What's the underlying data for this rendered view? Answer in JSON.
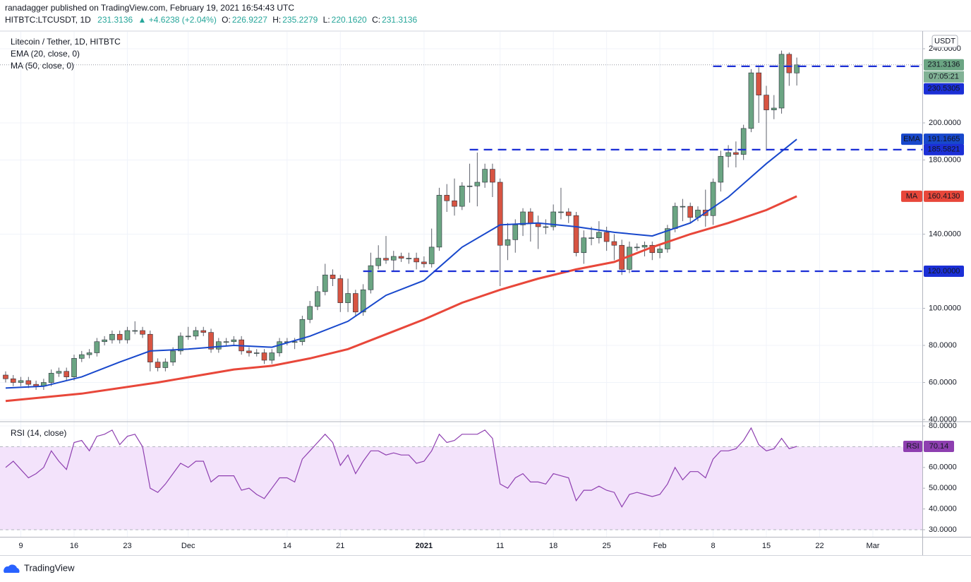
{
  "header": {
    "author_line": "ranadagger published on TradingView.com, February 19, 2021 16:54:43 UTC",
    "symbol": "HITBTC:LTCUSDT, 1D",
    "price": "231.3136",
    "change": "▲ +4.6238 (+2.04%)",
    "ohlc": [
      {
        "label": "O:",
        "value": "226.9227"
      },
      {
        "label": "H:",
        "value": "235.2279"
      },
      {
        "label": "L:",
        "value": "220.1620"
      },
      {
        "label": "C:",
        "value": "231.3136"
      }
    ]
  },
  "footer": {
    "brand": "TradingView"
  },
  "chart_data": [
    {
      "type": "candlestick",
      "title": "Litecoin / Tether, 1D, HITBTC",
      "currency": "USDT",
      "countdown": "07:05:21",
      "up_color": "#6ba583",
      "down_color": "#d75442",
      "wick_color": "#5d606b",
      "x": [
        0,
        1,
        2,
        3,
        4,
        5,
        6,
        7,
        8,
        9,
        10,
        11,
        12,
        13,
        14,
        15,
        16,
        17,
        18,
        19,
        20,
        21,
        22,
        23,
        24,
        25,
        26,
        27,
        28,
        29,
        30,
        31,
        32,
        33,
        34,
        35,
        36,
        37,
        38,
        39,
        40,
        41,
        42,
        43,
        44,
        45,
        46,
        47,
        48,
        49,
        50,
        51,
        52,
        53,
        54,
        55,
        56,
        57,
        58,
        59,
        60,
        61,
        62,
        63,
        64,
        65,
        66,
        67,
        68,
        69,
        70,
        71,
        72,
        73,
        74,
        75,
        76,
        77,
        78,
        79,
        80,
        81,
        82,
        83,
        84,
        85,
        86,
        87,
        88,
        89,
        90,
        91,
        92,
        93,
        94,
        95,
        96,
        97,
        98,
        99,
        100,
        101,
        102,
        103,
        104
      ],
      "open": [
        64,
        62,
        60,
        61,
        59,
        58,
        60,
        65,
        66,
        63,
        73,
        75,
        76,
        82,
        83,
        86,
        83,
        88,
        88,
        86,
        71,
        68,
        71,
        77,
        85,
        85,
        88,
        87,
        78,
        82,
        82,
        83,
        77,
        76,
        76,
        72,
        76,
        82,
        82,
        82,
        94,
        101,
        109,
        118,
        116,
        103,
        108,
        98,
        110,
        123,
        127,
        126,
        128,
        127,
        127,
        125,
        124,
        133,
        161,
        158,
        155,
        166,
        166,
        168,
        175,
        168,
        134,
        137,
        145,
        152,
        146,
        144,
        144,
        152,
        152,
        150,
        130,
        138,
        138,
        141,
        136,
        134,
        121,
        133,
        133,
        134,
        130,
        132,
        143,
        155,
        155,
        149,
        153,
        150,
        168,
        182,
        184,
        183,
        197,
        227,
        215,
        207,
        208,
        237,
        226.9227
      ],
      "high": [
        66,
        64,
        63,
        63,
        61,
        62,
        67,
        68,
        68,
        75,
        77,
        78,
        84,
        85,
        88,
        88,
        90,
        93,
        90,
        88,
        73,
        73,
        79,
        87,
        90,
        90,
        90,
        89,
        84,
        84,
        85,
        85,
        79,
        78,
        78,
        78,
        84,
        84,
        84,
        96,
        104,
        112,
        124,
        121,
        118,
        116,
        110,
        113,
        130,
        134,
        139,
        131,
        130,
        130,
        130,
        128,
        143,
        165,
        167,
        170,
        168,
        178,
        184,
        178,
        178,
        170,
        146,
        148,
        154,
        154,
        150,
        148,
        156,
        165,
        154,
        152,
        142,
        144,
        147,
        144,
        140,
        137,
        136,
        135,
        136,
        136,
        134,
        145,
        157,
        159,
        157,
        155,
        164,
        170,
        185,
        188,
        190,
        199,
        229,
        230,
        220,
        215,
        239,
        238,
        235.2279
      ],
      "low": [
        60,
        58,
        58,
        57,
        56,
        56,
        58,
        63,
        61,
        61,
        71,
        73,
        74,
        80,
        81,
        81,
        81,
        86,
        84,
        66,
        66,
        66,
        69,
        75,
        83,
        83,
        85,
        76,
        76,
        80,
        80,
        75,
        74,
        74,
        70,
        70,
        74,
        80,
        78,
        80,
        92,
        99,
        107,
        112,
        98,
        98,
        96,
        96,
        108,
        121,
        124,
        120,
        125,
        124,
        121,
        122,
        122,
        131,
        152,
        150,
        153,
        157,
        155,
        165,
        160,
        112,
        126,
        130,
        139,
        136,
        132,
        140,
        142,
        148,
        146,
        128,
        124,
        134,
        135,
        131,
        126,
        118,
        119,
        131,
        128,
        126,
        127,
        130,
        141,
        147,
        146,
        147,
        144,
        145,
        163,
        176,
        176,
        180,
        195,
        200,
        185,
        202,
        205,
        220,
        220.162
      ],
      "close": [
        62,
        60,
        61,
        59,
        58,
        60,
        65,
        66,
        63,
        73,
        75,
        76,
        82,
        83,
        86,
        83,
        88,
        88,
        86,
        71,
        68,
        71,
        77,
        85,
        85,
        88,
        87,
        78,
        82,
        82,
        83,
        77,
        76,
        76,
        72,
        76,
        82,
        82,
        82,
        94,
        101,
        109,
        118,
        116,
        103,
        108,
        98,
        110,
        123,
        127,
        126,
        128,
        127,
        127,
        125,
        124,
        133,
        161,
        158,
        155,
        166,
        166,
        168,
        175,
        168,
        134,
        137,
        145,
        152,
        146,
        144,
        144,
        152,
        152,
        150,
        130,
        138,
        138,
        141,
        136,
        134,
        121,
        133,
        133,
        134,
        130,
        132,
        143,
        155,
        155,
        149,
        153,
        150,
        168,
        182,
        184,
        183,
        197,
        227,
        215,
        207,
        208,
        237,
        227,
        231.3136
      ],
      "series": [
        {
          "name": "EMA (20, close, 0)",
          "tag": "EMA",
          "color": "#1848cc",
          "x": [
            0,
            5,
            10,
            15,
            19,
            24,
            30,
            35,
            40,
            45,
            50,
            55,
            60,
            65,
            70,
            75,
            80,
            85,
            90,
            95,
            100,
            104
          ],
          "values": [
            57,
            58,
            63,
            71,
            77,
            78,
            80,
            79,
            85,
            93,
            107,
            115,
            133,
            145,
            146,
            144,
            141,
            139,
            146,
            160,
            178,
            191.1665
          ]
        },
        {
          "name": "MA (50, close, 0)",
          "tag": "MA",
          "color": "#e8473a",
          "x": [
            0,
            10,
            20,
            30,
            35,
            40,
            45,
            50,
            55,
            60,
            65,
            70,
            75,
            80,
            85,
            90,
            95,
            100,
            104
          ],
          "values": [
            50,
            54,
            60,
            67,
            69,
            73,
            78,
            86,
            94,
            103,
            110,
            116,
            121,
            125,
            133,
            140,
            146,
            153,
            160.413
          ],
          "value_labels": [
            null,
            null,
            null,
            null,
            null,
            null,
            null,
            null,
            null,
            null,
            null,
            null,
            null,
            null,
            null,
            null,
            null,
            null,
            "160.4130"
          ]
        }
      ],
      "levels": [
        {
          "value": 230.5305,
          "start": 93
        },
        {
          "value": 185.5821,
          "start": 61
        },
        {
          "value": 120,
          "label": "120.0000",
          "start": 47
        }
      ],
      "level_color": "#1b2fd6",
      "xlim": [
        -0.74,
        120.5
      ],
      "xticks": [
        {
          "value": 2,
          "label": "9"
        },
        {
          "value": 9,
          "label": "16"
        },
        {
          "value": 16,
          "label": "23"
        },
        {
          "value": 24,
          "label": "Dec"
        },
        {
          "value": 37,
          "label": "14"
        },
        {
          "value": 44,
          "label": "21"
        },
        {
          "value": 55,
          "label": "2021"
        },
        {
          "value": 65,
          "label": "11"
        },
        {
          "value": 72,
          "label": "18"
        },
        {
          "value": 79,
          "label": "25"
        },
        {
          "value": 86,
          "label": "Feb"
        },
        {
          "value": 93,
          "label": "8"
        },
        {
          "value": 100,
          "label": "15"
        },
        {
          "value": 107,
          "label": "22"
        },
        {
          "value": 114,
          "label": "Mar"
        }
      ],
      "ylim": [
        39.24,
        249.14
      ],
      "yticks": [
        {
          "value": 40,
          "label": "40.0000"
        },
        {
          "value": 60,
          "label": "60.0000"
        },
        {
          "value": 80,
          "label": "80.0000"
        },
        {
          "value": 100,
          "label": "100.0000"
        },
        {
          "value": 140,
          "label": "140.0000"
        },
        {
          "value": 180,
          "label": "180.0000"
        },
        {
          "value": 200,
          "label": "200.0000"
        },
        {
          "value": 240,
          "label": "240.0000"
        }
      ],
      "grid": true
    },
    {
      "type": "line",
      "title": "RSI (14, close)",
      "band": [
        30,
        70
      ],
      "band_color": "#f3e3fb",
      "x": [
        0,
        1,
        2,
        3,
        4,
        5,
        6,
        7,
        8,
        9,
        10,
        11,
        12,
        13,
        14,
        15,
        16,
        17,
        18,
        19,
        20,
        21,
        22,
        23,
        24,
        25,
        26,
        27,
        28,
        29,
        30,
        31,
        32,
        33,
        34,
        35,
        36,
        37,
        38,
        39,
        40,
        41,
        42,
        43,
        44,
        45,
        46,
        47,
        48,
        49,
        50,
        51,
        52,
        53,
        54,
        55,
        56,
        57,
        58,
        59,
        60,
        61,
        62,
        63,
        64,
        65,
        66,
        67,
        68,
        69,
        70,
        71,
        72,
        73,
        74,
        75,
        76,
        77,
        78,
        79,
        80,
        81,
        82,
        83,
        84,
        85,
        86,
        87,
        88,
        89,
        90,
        91,
        92,
        93,
        94,
        95,
        96,
        97,
        98,
        99,
        100,
        101,
        102,
        103,
        104
      ],
      "series": [
        {
          "name": "RSI",
          "color": "#8e3fb0",
          "values": [
            60,
            63,
            59,
            55,
            57,
            60,
            68,
            63,
            59,
            72,
            73,
            68,
            75,
            76,
            78,
            71,
            75,
            76,
            70,
            50,
            48,
            52,
            57,
            62,
            60,
            63,
            63,
            53,
            56,
            56,
            56,
            49,
            50,
            47,
            45,
            50,
            55,
            55,
            53,
            64,
            68,
            72,
            76,
            72,
            61,
            66,
            57,
            63,
            68,
            68,
            66,
            67,
            66,
            66,
            62,
            63,
            68,
            76,
            72,
            73,
            76,
            76,
            76,
            78,
            74,
            52,
            50,
            55,
            57,
            53,
            53,
            52,
            57,
            56,
            55,
            44,
            49,
            49,
            51,
            49,
            48,
            41,
            47,
            48,
            47,
            46,
            47,
            52,
            60,
            54,
            58,
            58,
            55,
            64,
            68,
            68,
            69,
            73,
            79,
            71,
            68,
            69,
            74,
            69,
            70.14
          ]
        }
      ],
      "ylim": [
        26.6,
        81.7
      ],
      "yticks": [
        {
          "value": 30,
          "label": "30.0000"
        },
        {
          "value": 40,
          "label": "40.0000"
        },
        {
          "value": 50,
          "label": "50.0000"
        },
        {
          "value": 60,
          "label": "60.0000"
        },
        {
          "value": 80,
          "label": "80.0000"
        }
      ]
    }
  ]
}
